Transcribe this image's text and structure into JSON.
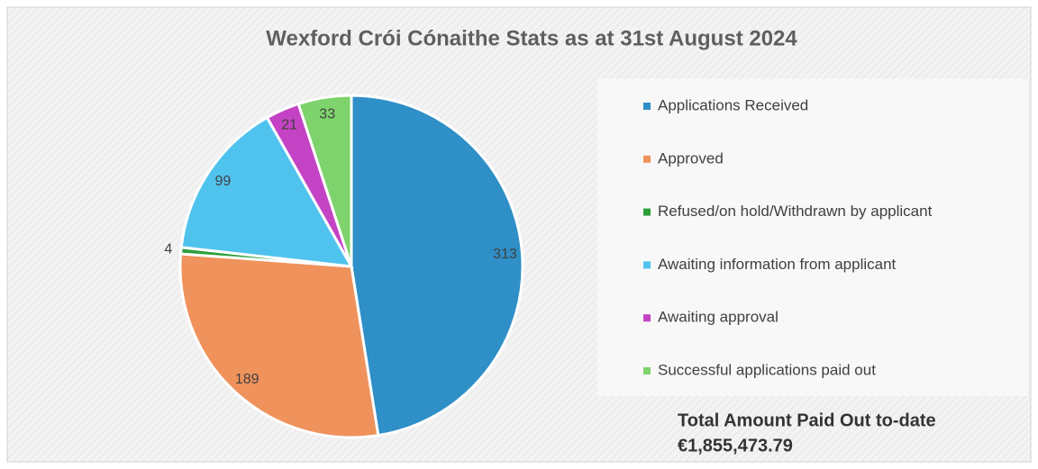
{
  "chart_data": {
    "type": "pie",
    "title": "Wexford Crói Cónaithe Stats as at 31st August 2024",
    "categories": [
      "Applications Received",
      "Approved",
      "Refused/on hold/Withdrawn by applicant",
      "Awaiting information from applicant",
      "Awaiting approval",
      "Successful applications paid out"
    ],
    "values": [
      313,
      189,
      4,
      99,
      21,
      33
    ],
    "colors": [
      "#2f8fc7",
      "#ef925c",
      "#2e9e3a",
      "#4fc3ee",
      "#c443c4",
      "#7ed36c"
    ],
    "legend": "right",
    "annotations": [
      "Total Amount Paid Out to-date",
      "€1,855,473.79"
    ]
  }
}
